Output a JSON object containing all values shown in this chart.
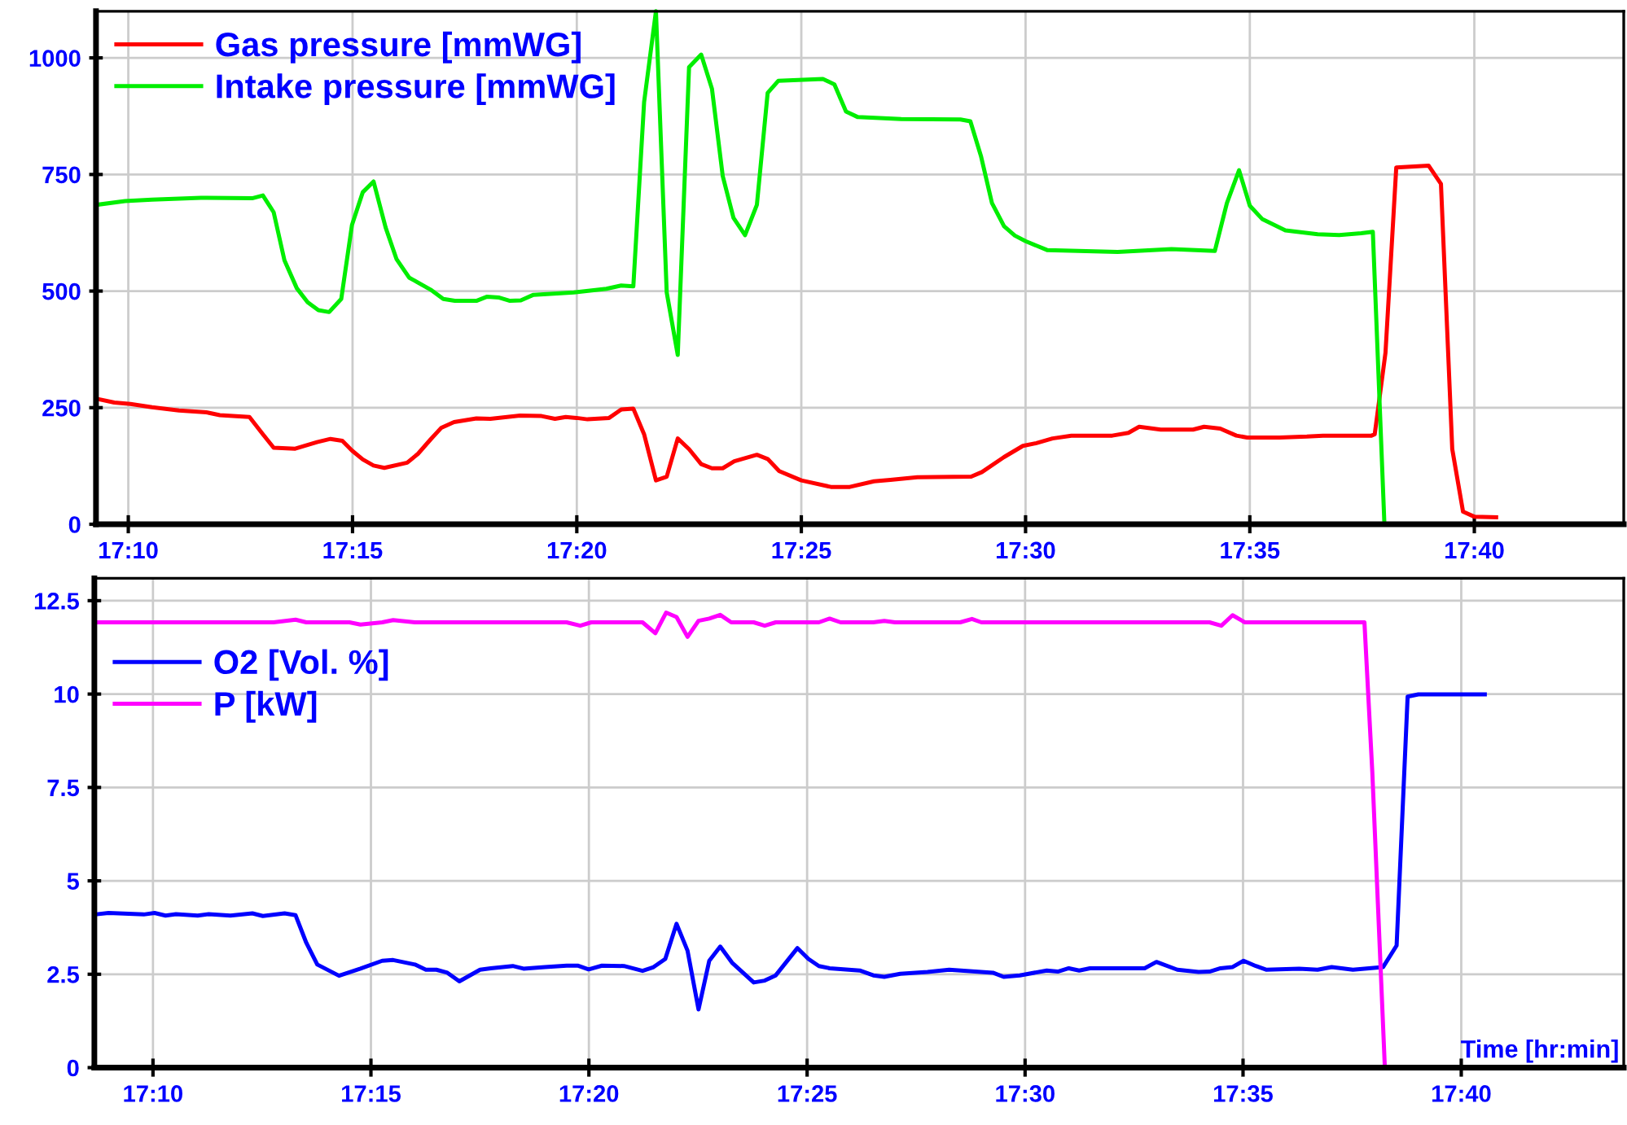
{
  "chart_data": [
    {
      "type": "line",
      "xlim": [
        17.1547,
        17.7222
      ],
      "ylim": [
        0,
        1100
      ],
      "yticks": [
        0,
        250,
        500,
        750,
        1000
      ],
      "xticks": [
        {
          "value": 17.1667,
          "label": "17:10"
        },
        {
          "value": 17.25,
          "label": "17:15"
        },
        {
          "value": 17.3333,
          "label": "17:20"
        },
        {
          "value": 17.4167,
          "label": "17:25"
        },
        {
          "value": 17.5,
          "label": "17:30"
        },
        {
          "value": 17.5833,
          "label": "17:35"
        },
        {
          "value": 17.6667,
          "label": "17:40"
        }
      ],
      "grid": true,
      "legend": "top left",
      "marker": "none",
      "line_style": "solid",
      "series": [
        {
          "name": "Gas pressure [mmWG]",
          "color": "#ff0000",
          "x": [
            17.155,
            17.1615,
            17.1675,
            17.1755,
            17.1855,
            17.1957,
            17.2007,
            17.2117,
            17.2167,
            17.2207,
            17.2287,
            17.2368,
            17.2418,
            17.2462,
            17.2498,
            17.2538,
            17.2578,
            17.2618,
            17.2703,
            17.2743,
            17.279,
            17.283,
            17.2877,
            17.296,
            17.3012,
            17.3122,
            17.3202,
            17.3252,
            17.3292,
            17.3332,
            17.3373,
            17.3453,
            17.3498,
            17.3543,
            17.3583,
            17.3627,
            17.3667,
            17.3708,
            17.375,
            17.3795,
            17.3835,
            17.3875,
            17.3918,
            17.4002,
            17.4042,
            17.4085,
            17.4167,
            17.4277,
            17.4347,
            17.4437,
            17.4498,
            17.4598,
            17.4798,
            17.4838,
            17.492,
            17.499,
            17.504,
            17.51,
            17.517,
            17.5322,
            17.5382,
            17.5422,
            17.5502,
            17.5622,
            17.5663,
            17.5723,
            17.5783,
            17.5823,
            17.5943,
            17.6045,
            17.6105,
            17.6285,
            17.6297,
            17.6337,
            17.6377,
            17.6497,
            17.6543,
            17.6585,
            17.6625,
            17.6668,
            17.6748
          ],
          "values": [
            269,
            261,
            258,
            251,
            244,
            240,
            234,
            230,
            193,
            164,
            162,
            176,
            183,
            179,
            158,
            139,
            126,
            121,
            132,
            151,
            182,
            207,
            219,
            227,
            226,
            233,
            232,
            226,
            230,
            228,
            225,
            228,
            246,
            248,
            193,
            94,
            102,
            184,
            161,
            129,
            120,
            120,
            135,
            149,
            140,
            114,
            94,
            80,
            80,
            92,
            95,
            101,
            102,
            112,
            144,
            168,
            174,
            184,
            190,
            190,
            196,
            209,
            203,
            203,
            209,
            205,
            190,
            186,
            186,
            188,
            190,
            190,
            193,
            368,
            765,
            769,
            730,
            161,
            27,
            16,
            15
          ]
        },
        {
          "name": "Intake pressure [mmWG]",
          "color": "#00ee00",
          "x": [
            17.155,
            17.1655,
            17.1755,
            17.1937,
            17.2127,
            17.2167,
            17.2207,
            17.2247,
            17.2293,
            17.2333,
            17.2373,
            17.2413,
            17.2458,
            17.2498,
            17.2538,
            17.2578,
            17.2623,
            17.2663,
            17.271,
            17.279,
            17.2837,
            17.288,
            17.296,
            17.3,
            17.3045,
            17.3085,
            17.3125,
            17.3172,
            17.3322,
            17.3443,
            17.3498,
            17.3543,
            17.3583,
            17.3627,
            17.3667,
            17.3708,
            17.375,
            17.3795,
            17.3835,
            17.3875,
            17.3915,
            17.3958,
            17.4002,
            17.4042,
            17.4082,
            17.4247,
            17.429,
            17.4333,
            17.4377,
            17.4538,
            17.4758,
            17.4795,
            17.4835,
            17.4875,
            17.492,
            17.496,
            17.5,
            17.508,
            17.5342,
            17.5542,
            17.5703,
            17.5748,
            17.5793,
            17.5833,
            17.588,
            17.5965,
            17.6085,
            17.6165,
            17.6247,
            17.629,
            17.6333
          ],
          "values": [
            685,
            693,
            696,
            700,
            699,
            705,
            669,
            566,
            506,
            476,
            459,
            455,
            483,
            642,
            712,
            735,
            636,
            569,
            529,
            503,
            483,
            479,
            479,
            488,
            486,
            479,
            480,
            492,
            497,
            505,
            512,
            510,
            905,
            1100,
            497,
            363,
            980,
            1007,
            934,
            747,
            657,
            620,
            685,
            925,
            951,
            955,
            943,
            885,
            873,
            869,
            868,
            864,
            788,
            689,
            639,
            619,
            607,
            588,
            584,
            590,
            586,
            689,
            759,
            683,
            654,
            630,
            622,
            620,
            624,
            627,
            0
          ]
        }
      ]
    },
    {
      "type": "line",
      "xlim": [
        17.1443,
        17.7288
      ],
      "ylim": [
        0,
        13.1
      ],
      "yticks": [
        0,
        2.5,
        5,
        7.5,
        10,
        12.5
      ],
      "xticks": [
        {
          "value": 17.1667,
          "label": "17:10"
        },
        {
          "value": 17.25,
          "label": "17:15"
        },
        {
          "value": 17.3333,
          "label": "17:20"
        },
        {
          "value": 17.4167,
          "label": "17:25"
        },
        {
          "value": 17.5,
          "label": "17:30"
        },
        {
          "value": 17.5833,
          "label": "17:35"
        },
        {
          "value": 17.6667,
          "label": "17:40"
        }
      ],
      "xlabel": "Time [hr:min]",
      "grid": true,
      "legend": "left",
      "marker": "none",
      "line_style": "solid",
      "series": [
        {
          "name": "O2 [Vol. %]",
          "color": "#0000ff",
          "x": [
            17.1445,
            17.1497,
            17.1632,
            17.1673,
            17.1715,
            17.1755,
            17.1838,
            17.188,
            17.1963,
            17.2047,
            17.2087,
            17.217,
            17.2212,
            17.2253,
            17.2295,
            17.2378,
            17.246,
            17.2543,
            17.2585,
            17.2668,
            17.271,
            17.275,
            17.2792,
            17.2838,
            17.2917,
            17.2958,
            17.3042,
            17.3083,
            17.3165,
            17.3248,
            17.329,
            17.3332,
            17.3383,
            17.3467,
            17.3538,
            17.358,
            17.3625,
            17.3668,
            17.371,
            17.3752,
            17.3793,
            17.3835,
            17.388,
            17.3963,
            17.4005,
            17.4047,
            17.413,
            17.4172,
            17.4212,
            17.4253,
            17.4368,
            17.442,
            17.4462,
            17.4523,
            17.4627,
            17.471,
            17.4877,
            17.4918,
            17.498,
            17.5083,
            17.5125,
            17.5167,
            17.5207,
            17.5248,
            17.5457,
            17.5502,
            17.5582,
            17.5663,
            17.5705,
            17.5747,
            17.5792,
            17.5835,
            17.5882,
            17.5923,
            17.6047,
            17.6118,
            17.6172,
            17.6253,
            17.6368,
            17.642,
            17.6462,
            17.6503,
            17.6757
          ],
          "values": [
            4.1,
            4.14,
            4.1,
            4.14,
            4.07,
            4.11,
            4.07,
            4.11,
            4.07,
            4.13,
            4.06,
            4.13,
            4.08,
            3.34,
            2.76,
            2.46,
            2.65,
            2.86,
            2.88,
            2.76,
            2.62,
            2.62,
            2.54,
            2.31,
            2.62,
            2.66,
            2.72,
            2.65,
            2.69,
            2.73,
            2.73,
            2.63,
            2.73,
            2.72,
            2.59,
            2.69,
            2.91,
            3.85,
            3.13,
            1.56,
            2.86,
            3.24,
            2.81,
            2.28,
            2.33,
            2.47,
            3.2,
            2.91,
            2.72,
            2.66,
            2.6,
            2.47,
            2.43,
            2.51,
            2.56,
            2.62,
            2.54,
            2.43,
            2.47,
            2.6,
            2.57,
            2.66,
            2.6,
            2.66,
            2.66,
            2.83,
            2.62,
            2.56,
            2.57,
            2.66,
            2.69,
            2.86,
            2.72,
            2.62,
            2.65,
            2.62,
            2.69,
            2.62,
            2.69,
            3.27,
            9.93,
            9.99,
            9.99
          ]
        },
        {
          "name": "P [kW]",
          "color": "#ff00ff",
          "x": [
            17.1445,
            17.2128,
            17.2212,
            17.2253,
            17.2418,
            17.246,
            17.2543,
            17.2585,
            17.2668,
            17.3248,
            17.33,
            17.3342,
            17.3538,
            17.3587,
            17.3628,
            17.3668,
            17.371,
            17.3752,
            17.3793,
            17.3835,
            17.3877,
            17.3963,
            17.4005,
            17.4047,
            17.4212,
            17.4253,
            17.4295,
            17.442,
            17.4462,
            17.4503,
            17.4752,
            17.4797,
            17.4833,
            17.5705,
            17.575,
            17.5793,
            17.584,
            17.6297,
            17.6327,
            17.6375,
            17.6752
          ],
          "values": [
            11.92,
            11.92,
            11.99,
            11.92,
            11.92,
            11.86,
            11.92,
            11.98,
            11.92,
            11.92,
            11.83,
            11.92,
            11.92,
            11.63,
            12.18,
            12.06,
            11.53,
            11.96,
            12.02,
            12.12,
            11.92,
            11.92,
            11.83,
            11.92,
            11.92,
            12.02,
            11.92,
            11.92,
            11.96,
            11.92,
            11.92,
            12.01,
            11.92,
            11.92,
            11.83,
            12.11,
            11.92,
            11.92,
            7.92,
            0,
            0
          ]
        }
      ]
    }
  ]
}
